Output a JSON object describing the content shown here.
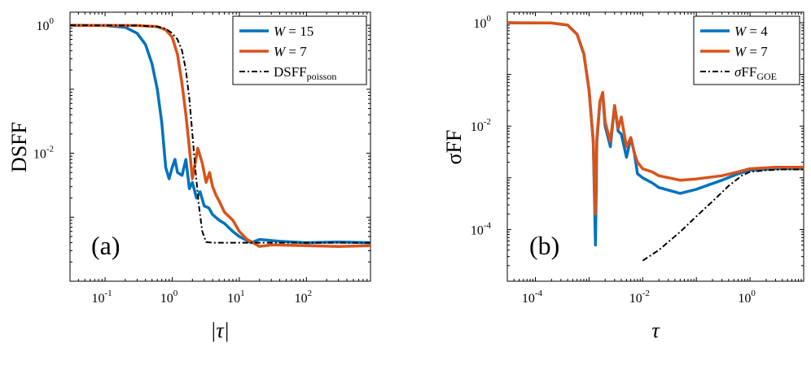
{
  "chart_data": [
    {
      "type": "line",
      "panel_label": "(a)",
      "xlabel": "|τ|",
      "ylabel": "DSFF",
      "xscale": "log",
      "yscale": "log",
      "xlim": [
        0.03,
        900
      ],
      "ylim": [
        0.0001,
        1.6
      ],
      "xticks": [
        {
          "v": 0.1,
          "b": "10",
          "e": "-1"
        },
        {
          "v": 1,
          "b": "10",
          "e": "0"
        },
        {
          "v": 10,
          "b": "10",
          "e": "1"
        },
        {
          "v": 100,
          "b": "10",
          "e": "2"
        }
      ],
      "yticks": [
        {
          "v": 1,
          "b": "10",
          "e": "0"
        },
        {
          "v": 0.01,
          "b": "10",
          "e": "-2"
        }
      ],
      "legend_position": "top-right",
      "legend": [
        {
          "pre": "W",
          "post": " = 15",
          "sub": "",
          "style": "solid",
          "color": "#0072BD"
        },
        {
          "pre": "W",
          "post": " = 7",
          "sub": "",
          "style": "solid",
          "color": "#D95319"
        },
        {
          "pre": "DSFF",
          "post": "",
          "sub": "poisson",
          "style": "dashdot",
          "color": "#000000"
        }
      ],
      "series": [
        {
          "name": "W = 15",
          "color": "#0072BD",
          "x": [
            0.03,
            0.1,
            0.2,
            0.3,
            0.4,
            0.5,
            0.6,
            0.7,
            0.8,
            0.9,
            1.0,
            1.1,
            1.2,
            1.4,
            1.6,
            1.8,
            2.0,
            2.3,
            2.6,
            3.0,
            3.5,
            4.0,
            5.0,
            6.0,
            8.0,
            10,
            15,
            20,
            40,
            100,
            300,
            900
          ],
          "y": [
            1.0,
            0.99,
            0.93,
            0.75,
            0.5,
            0.25,
            0.1,
            0.03,
            0.006,
            0.004,
            0.006,
            0.008,
            0.005,
            0.0045,
            0.008,
            0.0028,
            0.0035,
            0.002,
            0.0025,
            0.0015,
            0.0014,
            0.0011,
            0.0009,
            0.0008,
            0.0006,
            0.0005,
            0.0004,
            0.00045,
            0.00042,
            0.0004,
            0.00041,
            0.0004
          ]
        },
        {
          "name": "W = 7",
          "color": "#D95319",
          "x": [
            0.03,
            0.3,
            0.6,
            0.8,
            1.0,
            1.2,
            1.4,
            1.6,
            1.8,
            2.0,
            2.4,
            2.8,
            3.2,
            3.6,
            4.0,
            4.5,
            5.0,
            6.0,
            8.0,
            10,
            13,
            16,
            20,
            30,
            100,
            300,
            900
          ],
          "y": [
            1.0,
            0.99,
            0.95,
            0.85,
            0.65,
            0.35,
            0.12,
            0.04,
            0.012,
            0.004,
            0.012,
            0.007,
            0.0035,
            0.005,
            0.003,
            0.0022,
            0.0018,
            0.0012,
            0.0009,
            0.0006,
            0.00045,
            0.0004,
            0.00035,
            0.00037,
            0.00036,
            0.00035,
            0.00036
          ]
        },
        {
          "name": "DSFFpoisson",
          "color": "#000000",
          "x": [
            0.03,
            0.3,
            0.6,
            0.8,
            1.0,
            1.2,
            1.4,
            1.6,
            1.8,
            2.0,
            2.2,
            2.5,
            2.8,
            3.2,
            4.0,
            10,
            100,
            900
          ],
          "y": [
            1.0,
            0.99,
            0.95,
            0.88,
            0.75,
            0.6,
            0.4,
            0.2,
            0.07,
            0.02,
            0.006,
            0.0015,
            0.0006,
            0.00041,
            0.0004,
            0.0004,
            0.0004,
            0.0004
          ]
        }
      ]
    },
    {
      "type": "line",
      "panel_label": "(b)",
      "xlabel": "τ",
      "ylabel": "σFF",
      "xscale": "log",
      "yscale": "log",
      "xlim": [
        3e-05,
        10
      ],
      "ylim": [
        1e-05,
        1.6
      ],
      "xticks": [
        {
          "v": 0.0001,
          "b": "10",
          "e": "-4"
        },
        {
          "v": 0.01,
          "b": "10",
          "e": "-2"
        },
        {
          "v": 1,
          "b": "10",
          "e": "0"
        }
      ],
      "yticks": [
        {
          "v": 1,
          "b": "10",
          "e": "0"
        },
        {
          "v": 0.01,
          "b": "10",
          "e": "-2"
        },
        {
          "v": 0.0001,
          "b": "10",
          "e": "-4"
        }
      ],
      "legend_position": "top-right",
      "legend": [
        {
          "pre": "W",
          "post": " = 4",
          "sub": "",
          "style": "solid",
          "color": "#0072BD"
        },
        {
          "pre": "W",
          "post": " = 7",
          "sub": "",
          "style": "solid",
          "color": "#D95319"
        },
        {
          "pre": "σFF",
          "post": "",
          "sub": "GOE",
          "style": "dashdot",
          "color": "#000000"
        }
      ],
      "series": [
        {
          "name": "W = 4",
          "color": "#0072BD",
          "x": [
            3e-05,
            0.0002,
            0.0004,
            0.0006,
            0.0008,
            0.001,
            0.0012,
            0.00132,
            0.0014,
            0.0016,
            0.0018,
            0.002,
            0.0025,
            0.003,
            0.0035,
            0.004,
            0.005,
            0.006,
            0.007,
            0.008,
            0.01,
            0.015,
            0.02,
            0.05,
            0.1,
            0.3,
            0.6,
            1.0,
            3.0,
            10
          ],
          "y": [
            1.0,
            0.99,
            0.9,
            0.6,
            0.25,
            0.05,
            0.005,
            5e-05,
            0.005,
            0.03,
            0.04,
            0.01,
            0.004,
            0.025,
            0.008,
            0.007,
            0.0025,
            0.006,
            0.003,
            0.0012,
            0.001,
            0.0008,
            0.00065,
            0.0005,
            0.0006,
            0.0009,
            0.0012,
            0.0014,
            0.0015,
            0.0015
          ]
        },
        {
          "name": "W = 7",
          "color": "#D95319",
          "x": [
            3e-05,
            0.0002,
            0.0004,
            0.0006,
            0.0008,
            0.001,
            0.0012,
            0.0013,
            0.0014,
            0.0016,
            0.0018,
            0.002,
            0.0025,
            0.003,
            0.0035,
            0.004,
            0.005,
            0.006,
            0.007,
            0.008,
            0.01,
            0.015,
            0.02,
            0.05,
            0.1,
            0.3,
            0.6,
            1.0,
            3.0,
            10
          ],
          "y": [
            1.0,
            0.99,
            0.9,
            0.6,
            0.25,
            0.05,
            0.005,
            0.0002,
            0.006,
            0.03,
            0.045,
            0.012,
            0.005,
            0.025,
            0.009,
            0.015,
            0.004,
            0.006,
            0.003,
            0.002,
            0.0015,
            0.0013,
            0.0011,
            0.0009,
            0.00095,
            0.0011,
            0.0013,
            0.0015,
            0.0016,
            0.0016
          ]
        },
        {
          "name": "σFF GOE",
          "color": "#000000",
          "x": [
            0.01,
            0.02,
            0.05,
            0.1,
            0.2,
            0.4,
            0.7,
            1.0,
            2.0,
            4.0,
            10
          ],
          "y": [
            2.5e-05,
            4e-05,
            9e-05,
            0.00018,
            0.00035,
            0.0007,
            0.0011,
            0.0013,
            0.0014,
            0.00145,
            0.00145
          ]
        }
      ]
    }
  ]
}
